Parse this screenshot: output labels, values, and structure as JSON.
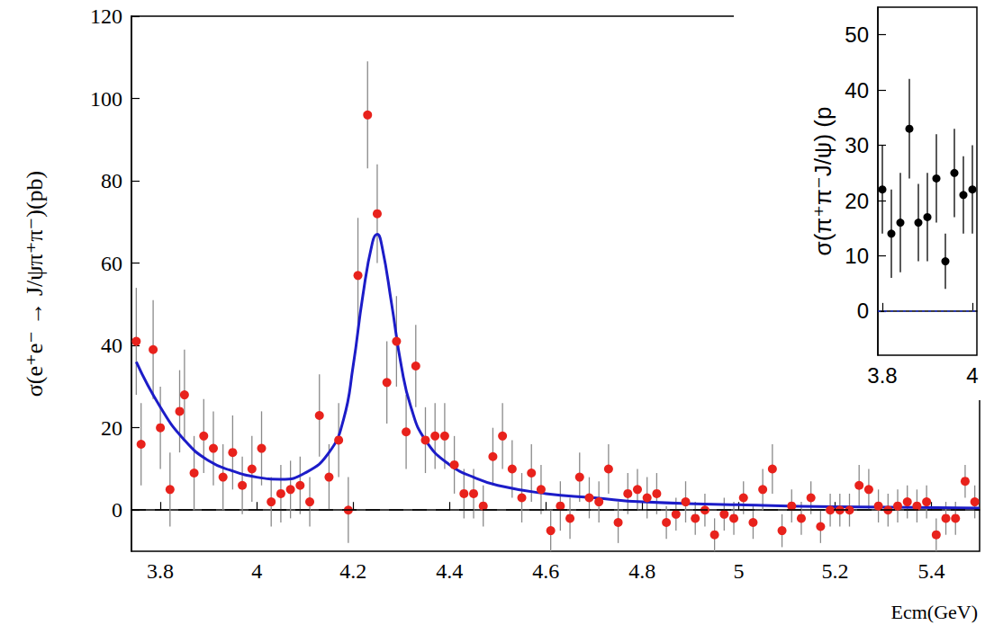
{
  "chart_data": [
    {
      "type": "scatter",
      "y_label": "σ(e⁺e⁻ → J/ψπ⁺π⁻)(pb)",
      "x_label": "Ecm(GeV)",
      "xlim": [
        3.74,
        5.5
      ],
      "xticks": [
        3.8,
        4,
        4.2,
        4.4,
        4.6,
        4.8,
        5,
        5.2,
        5.4
      ],
      "ylim": [
        -10,
        120
      ],
      "yticks": [
        0,
        20,
        40,
        60,
        80,
        100,
        120
      ],
      "grid": false,
      "series": [
        {
          "type": "scatter",
          "color": "#e8221c",
          "marker": "circle",
          "x": [
            3.75,
            3.76,
            3.785,
            3.8,
            3.82,
            3.84,
            3.85,
            3.87,
            3.89,
            3.91,
            3.93,
            3.95,
            3.97,
            3.99,
            4.01,
            4.03,
            4.05,
            4.07,
            4.09,
            4.11,
            4.13,
            4.15,
            4.17,
            4.19,
            4.21,
            4.23,
            4.25,
            4.27,
            4.29,
            4.31,
            4.33,
            4.35,
            4.37,
            4.39,
            4.41,
            4.43,
            4.45,
            4.47,
            4.49,
            4.51,
            4.53,
            4.55,
            4.57,
            4.59,
            4.61,
            4.63,
            4.65,
            4.67,
            4.69,
            4.71,
            4.73,
            4.75,
            4.77,
            4.79,
            4.81,
            4.83,
            4.85,
            4.87,
            4.89,
            4.91,
            4.93,
            4.95,
            4.97,
            4.99,
            5.01,
            5.03,
            5.05,
            5.07,
            5.09,
            5.11,
            5.13,
            5.15,
            5.17,
            5.19,
            5.21,
            5.23,
            5.25,
            5.27,
            5.29,
            5.31,
            5.33,
            5.35,
            5.37,
            5.39,
            5.41,
            5.43,
            5.45,
            5.47,
            5.49
          ],
          "values": [
            41,
            16,
            39,
            20,
            5,
            24,
            28,
            9,
            18,
            15,
            8,
            14,
            6,
            10,
            15,
            2,
            4,
            5,
            6,
            2,
            23,
            8,
            17,
            0,
            57,
            96,
            72,
            31,
            41,
            19,
            35,
            17,
            18,
            18,
            11,
            4,
            4,
            1,
            13,
            18,
            10,
            3,
            9,
            5,
            -5,
            1,
            -2,
            8,
            3,
            2,
            10,
            -3,
            4,
            5,
            3,
            4,
            -3,
            -1,
            2,
            -2,
            0,
            -6,
            -1,
            -2,
            3,
            -3,
            5,
            10,
            -5,
            1,
            -2,
            3,
            -4,
            0,
            0,
            0,
            6,
            5,
            1,
            0,
            1,
            2,
            1,
            2,
            -6,
            -2,
            -2,
            7,
            2
          ],
          "errors": [
            13,
            10,
            12,
            10,
            9,
            10,
            11,
            9,
            9,
            9,
            8,
            9,
            7,
            8,
            9,
            6,
            7,
            7,
            7,
            6,
            10,
            8,
            9,
            8,
            14,
            13,
            12,
            10,
            11,
            9,
            10,
            8,
            8,
            8,
            7,
            6,
            6,
            5,
            7,
            8,
            7,
            6,
            7,
            6,
            5,
            6,
            5,
            6,
            5,
            5,
            6,
            5,
            5,
            5,
            5,
            5,
            4,
            4,
            5,
            4,
            4,
            4,
            4,
            4,
            4,
            4,
            5,
            6,
            4,
            4,
            4,
            4,
            4,
            4,
            4,
            4,
            5,
            5,
            4,
            4,
            4,
            4,
            4,
            4,
            4,
            4,
            4,
            4,
            4
          ]
        },
        {
          "type": "line",
          "color": "#1c1cc8",
          "line_style": "solid",
          "x": [
            3.75,
            3.8,
            3.85,
            3.9,
            3.95,
            4.0,
            4.05,
            4.1,
            4.15,
            4.18,
            4.2,
            4.22,
            4.24,
            4.25,
            4.26,
            4.28,
            4.3,
            4.32,
            4.35,
            4.4,
            4.45,
            4.5,
            4.6,
            4.7,
            4.8,
            5.0,
            5.2,
            5.5
          ],
          "values": [
            36,
            25,
            17,
            12,
            9.5,
            8,
            7.5,
            9,
            14,
            22,
            35,
            52,
            65,
            67,
            64,
            50,
            35,
            25,
            17,
            11,
            8,
            6,
            4,
            3,
            2,
            1.3,
            0.8,
            0.5
          ]
        }
      ],
      "reference_line": {
        "y": 0,
        "color": "#000000",
        "line_style": "dashed"
      }
    },
    {
      "type": "scatter",
      "y_label": "σ(π⁺π⁻J/ψ) (p",
      "xlim": [
        3.79,
        4.01
      ],
      "xticks": [
        3.8,
        4
      ],
      "ylim": [
        -8,
        55
      ],
      "yticks": [
        0,
        10,
        20,
        30,
        40,
        50
      ],
      "grid": false,
      "series": [
        {
          "type": "scatter",
          "color": "#000000",
          "marker": "circle",
          "x": [
            3.8,
            3.82,
            3.84,
            3.86,
            3.88,
            3.9,
            3.92,
            3.94,
            3.96,
            3.98,
            4.0
          ],
          "values": [
            22,
            14,
            16,
            33,
            16,
            17,
            24,
            9,
            25,
            21,
            22
          ],
          "errors": [
            8,
            8,
            9,
            9,
            7,
            8,
            8,
            5,
            8,
            7,
            8
          ]
        }
      ],
      "reference_line": {
        "y": 0,
        "color": "#2233cc",
        "line_style": "dotted"
      }
    }
  ]
}
